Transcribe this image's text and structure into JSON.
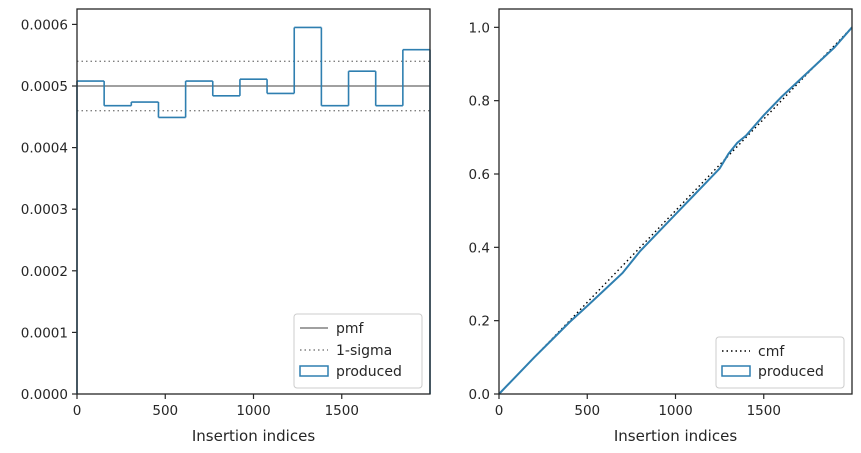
{
  "colors": {
    "step": "#2f7fb0",
    "cmf_line": "#1f5f94",
    "pmf": "#808080",
    "sigma": "#808080",
    "cmf_ref": "#000000",
    "frame": "#262626"
  },
  "chart_data": [
    {
      "type": "histogram",
      "xlabel": "Insertion indices",
      "ylabel": "",
      "xlim": [
        0,
        2000
      ],
      "ylim": [
        0,
        0.000625
      ],
      "x_ticks": [
        0,
        500,
        1000,
        1500
      ],
      "x_tick_labels": [
        "0",
        "500",
        "1000",
        "1500"
      ],
      "y_ticks": [
        0,
        0.0001,
        0.0002,
        0.0003,
        0.0004,
        0.0005,
        0.0006
      ],
      "y_tick_labels": [
        "0.0000",
        "0.0001",
        "0.0002",
        "0.0003",
        "0.0004",
        "0.0005",
        "0.0006"
      ],
      "pmf": 0.0005,
      "sigma_band": [
        0.00046,
        0.00054
      ],
      "bin_edges": [
        0,
        153.8,
        307.7,
        461.5,
        615.4,
        769.2,
        923.1,
        1076.9,
        1230.8,
        1384.6,
        1538.5,
        1692.3,
        1846.2,
        2000
      ],
      "values": [
        0.000508,
        0.000468,
        0.000474,
        0.000449,
        0.000508,
        0.000484,
        0.000511,
        0.000488,
        0.000595,
        0.000468,
        0.000524,
        0.000468,
        0.000559
      ],
      "legend": {
        "position": "lower right",
        "entries": [
          "pmf",
          "1-sigma",
          "produced"
        ]
      }
    },
    {
      "type": "line",
      "xlabel": "Insertion indices",
      "ylabel": "",
      "xlim": [
        0,
        2000
      ],
      "ylim": [
        0,
        1.05
      ],
      "x_ticks": [
        0,
        500,
        1000,
        1500
      ],
      "x_tick_labels": [
        "0",
        "500",
        "1000",
        "1500"
      ],
      "y_ticks": [
        0,
        0.2,
        0.4,
        0.6,
        0.8,
        1.0
      ],
      "y_tick_labels": [
        "0.0",
        "0.2",
        "0.4",
        "0.6",
        "0.8",
        "1.0"
      ],
      "cmf_reference": {
        "x": [
          0,
          2000
        ],
        "y": [
          0,
          1.0
        ]
      },
      "produced": {
        "x": [
          0,
          100,
          200,
          300,
          400,
          500,
          600,
          700,
          800,
          900,
          1000,
          1100,
          1200,
          1250,
          1300,
          1350,
          1400,
          1500,
          1600,
          1700,
          1800,
          1900,
          2000
        ],
        "y": [
          0,
          0.05,
          0.1,
          0.148,
          0.196,
          0.24,
          0.285,
          0.33,
          0.39,
          0.44,
          0.49,
          0.54,
          0.59,
          0.615,
          0.655,
          0.685,
          0.705,
          0.76,
          0.81,
          0.855,
          0.9,
          0.945,
          1.0
        ]
      },
      "legend": {
        "position": "lower right",
        "entries": [
          "cmf",
          "produced"
        ]
      }
    }
  ]
}
